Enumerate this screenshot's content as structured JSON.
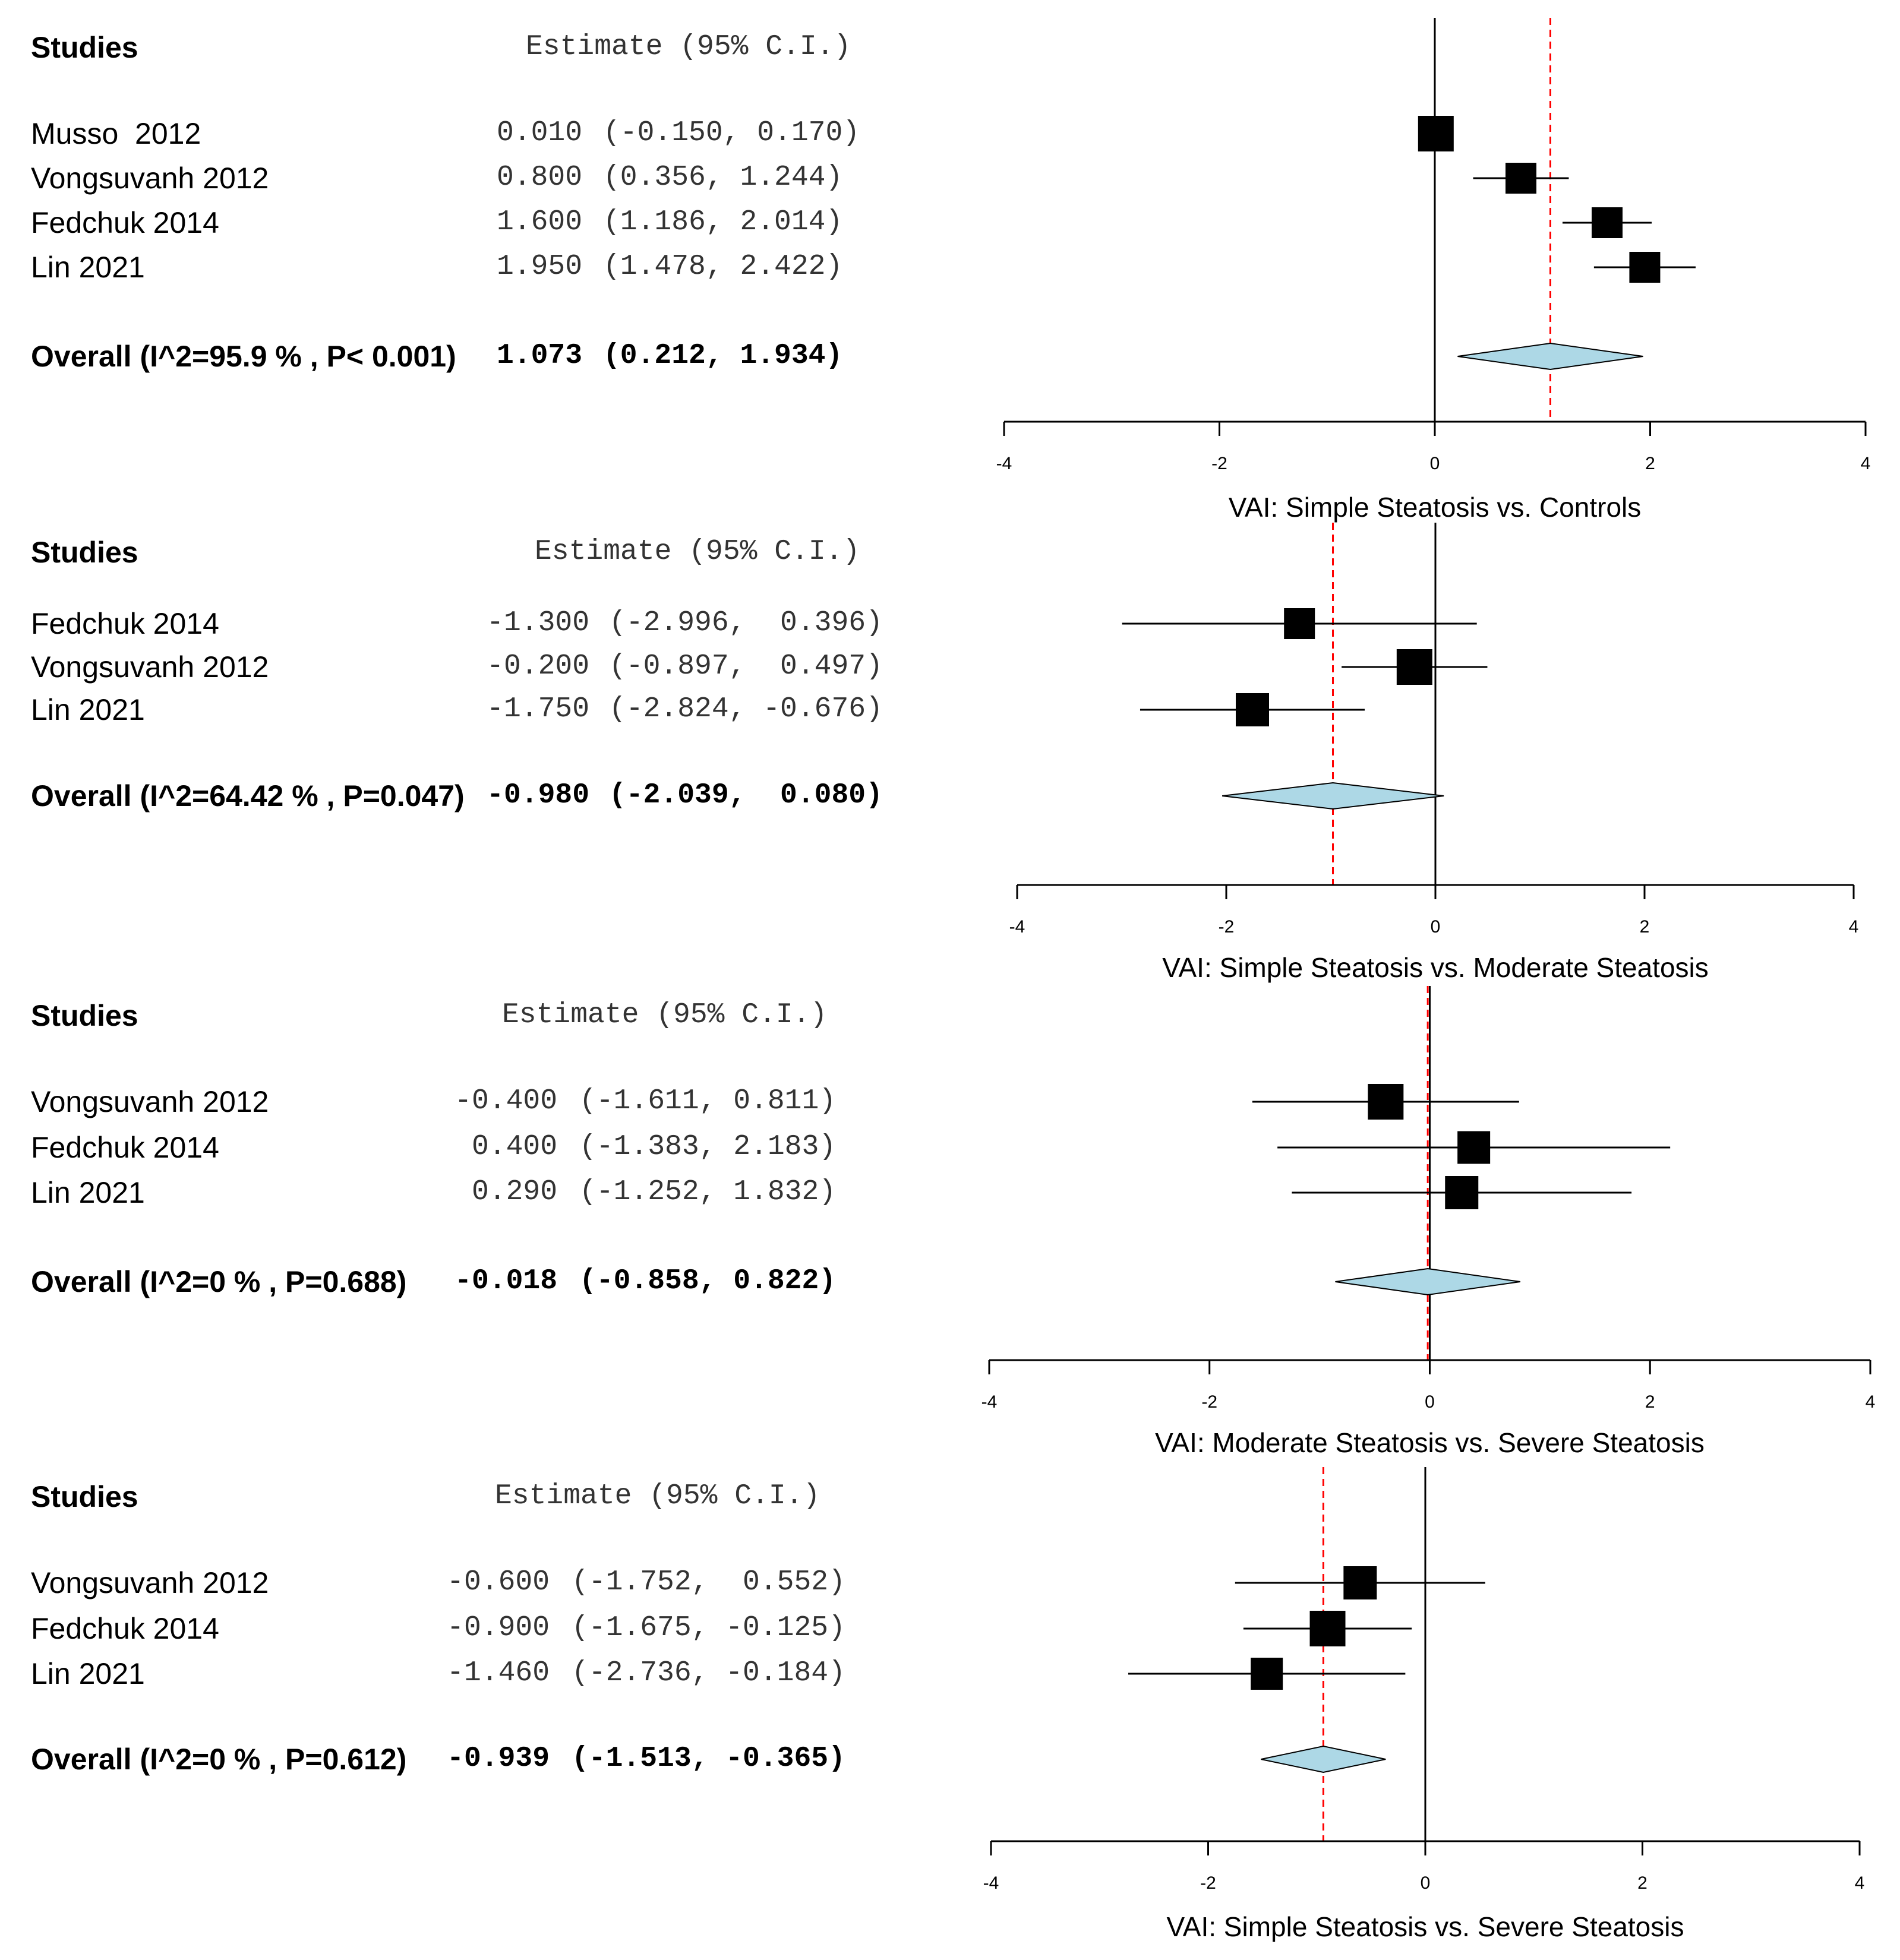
{
  "colors": {
    "square": "#000000",
    "ci_line": "#000000",
    "diamond_fill": "#add8e6",
    "diamond_stroke": "#000000",
    "overall_ref_line": "#ff0000",
    "zero_line": "#000000"
  },
  "chart_data": [
    {
      "type": "forest",
      "studies_header": "Studies",
      "estimate_header": "Estimate (95% C.I.)",
      "studies": [
        {
          "label": "Musso  2012",
          "estimate": 0.01,
          "lower": -0.15,
          "upper": 0.17,
          "estimate_text": "0.010",
          "ci_text": "(-0.150, 0.170)",
          "weight": 1.0
        },
        {
          "label": "Vongsuvanh 2012",
          "estimate": 0.8,
          "lower": 0.356,
          "upper": 1.244,
          "estimate_text": "0.800",
          "ci_text": "(0.356, 1.244)",
          "weight": 0.6
        },
        {
          "label": "Fedchuk 2014",
          "estimate": 1.6,
          "lower": 1.186,
          "upper": 2.014,
          "estimate_text": "1.600",
          "ci_text": "(1.186, 2.014)",
          "weight": 0.6
        },
        {
          "label": "Lin 2021",
          "estimate": 1.95,
          "lower": 1.478,
          "upper": 2.422,
          "estimate_text": "1.950",
          "ci_text": "(1.478, 2.422)",
          "weight": 0.6
        }
      ],
      "overall": {
        "label": "Overall (I^2=95.9 % , P< 0.001)",
        "estimate": 1.073,
        "lower": 0.212,
        "upper": 1.934,
        "estimate_text": "1.073",
        "ci_text": "(0.212, 1.934)"
      },
      "xlim": [
        -4,
        4
      ],
      "ticks": [
        -4,
        -2,
        0,
        2,
        4
      ],
      "tick_labels": [
        "-4",
        "-2",
        "0",
        "2",
        "4"
      ],
      "xlabel": "VAI: Simple Steatosis vs. Controls"
    },
    {
      "type": "forest",
      "studies_header": "Studies",
      "estimate_header": "Estimate (95% C.I.)",
      "studies": [
        {
          "label": "Fedchuk 2014",
          "estimate": -1.3,
          "lower": -2.996,
          "upper": 0.396,
          "estimate_text": "-1.300",
          "ci_text": "(-2.996,  0.396)",
          "weight": 0.6
        },
        {
          "label": "Vongsuvanh 2012",
          "estimate": -0.2,
          "lower": -0.897,
          "upper": 0.497,
          "estimate_text": "-0.200",
          "ci_text": "(-0.897,  0.497)",
          "weight": 1.0
        },
        {
          "label": "Lin 2021",
          "estimate": -1.75,
          "lower": -2.824,
          "upper": -0.676,
          "estimate_text": "-1.750",
          "ci_text": "(-2.824, -0.676)",
          "weight": 0.8
        }
      ],
      "overall": {
        "label": "Overall (I^2=64.42 % , P=0.047)",
        "estimate": -0.98,
        "lower": -2.039,
        "upper": 0.08,
        "estimate_text": "-0.980",
        "ci_text": "(-2.039,  0.080)"
      },
      "xlim": [
        -4,
        4
      ],
      "ticks": [
        -4,
        -2,
        0,
        2,
        4
      ],
      "tick_labels": [
        "-4",
        "-2",
        "0",
        "2",
        "4"
      ],
      "xlabel": "VAI: Simple Steatosis vs. Moderate Steatosis"
    },
    {
      "type": "forest",
      "studies_header": "Studies",
      "estimate_header": "Estimate (95% C.I.)",
      "studies": [
        {
          "label": "Vongsuvanh 2012",
          "estimate": -0.4,
          "lower": -1.611,
          "upper": 0.811,
          "estimate_text": "-0.400",
          "ci_text": "(-1.611, 0.811)",
          "weight": 1.0
        },
        {
          "label": "Fedchuk 2014",
          "estimate": 0.4,
          "lower": -1.383,
          "upper": 2.183,
          "estimate_text": "0.400",
          "ci_text": "(-1.383, 2.183)",
          "weight": 0.75
        },
        {
          "label": "Lin 2021",
          "estimate": 0.29,
          "lower": -1.252,
          "upper": 1.832,
          "estimate_text": "0.290",
          "ci_text": "(-1.252, 1.832)",
          "weight": 0.8
        }
      ],
      "overall": {
        "label": "Overall (I^2=0 % , P=0.688)",
        "estimate": -0.018,
        "lower": -0.858,
        "upper": 0.822,
        "estimate_text": "-0.018",
        "ci_text": "(-0.858, 0.822)"
      },
      "xlim": [
        -4,
        4
      ],
      "ticks": [
        -4,
        -2,
        0,
        2,
        4
      ],
      "tick_labels": [
        "-4",
        "-2",
        "0",
        "2",
        "4"
      ],
      "xlabel": "VAI: Moderate Steatosis vs. Severe Steatosis"
    },
    {
      "type": "forest",
      "studies_header": "Studies",
      "estimate_header": "Estimate (95% C.I.)",
      "studies": [
        {
          "label": "Vongsuvanh 2012",
          "estimate": -0.6,
          "lower": -1.752,
          "upper": 0.552,
          "estimate_text": "-0.600",
          "ci_text": "(-1.752,  0.552)",
          "weight": 0.8
        },
        {
          "label": "Fedchuk 2014",
          "estimate": -0.9,
          "lower": -1.675,
          "upper": -0.125,
          "estimate_text": "-0.900",
          "ci_text": "(-1.675, -0.125)",
          "weight": 1.0
        },
        {
          "label": "Lin 2021",
          "estimate": -1.46,
          "lower": -2.736,
          "upper": -0.184,
          "estimate_text": "-1.460",
          "ci_text": "(-2.736, -0.184)",
          "weight": 0.7
        }
      ],
      "overall": {
        "label": "Overall (I^2=0 % , P=0.612)",
        "estimate": -0.939,
        "lower": -1.513,
        "upper": -0.365,
        "estimate_text": "-0.939",
        "ci_text": "(-1.513, -0.365)"
      },
      "xlim": [
        -4,
        4
      ],
      "ticks": [
        -4,
        -2,
        0,
        2,
        4
      ],
      "tick_labels": [
        "-4",
        "-2",
        "0",
        "2",
        "4"
      ],
      "xlabel": "VAI: Simple Steatosis vs. Severe Steatosis"
    }
  ]
}
